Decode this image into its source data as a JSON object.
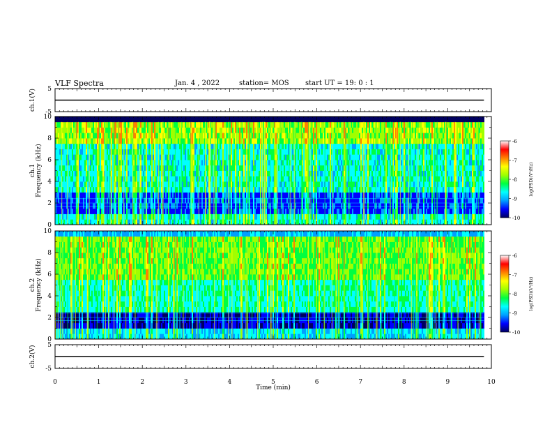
{
  "header": {
    "title": "VLF Spectra",
    "date": "Jan. 4 , 2022",
    "station": "station= MOS",
    "start": "start UT = 19: 0 : 1"
  },
  "chart_data": [
    {
      "type": "line",
      "name": "ch.1 waveform",
      "ylabel": "ch.1(V)",
      "ylim": [
        -5,
        5
      ],
      "yticks": [
        "5",
        "-5"
      ],
      "xlim": [
        0,
        10
      ],
      "description_values": {
        "level": 0.0
      }
    },
    {
      "type": "heatmap",
      "name": "ch.1 spectrogram",
      "ylabel": "ch.1\nFrequency (kHz)",
      "ylabel_lines": [
        "ch.1",
        "Frequency (kHz)"
      ],
      "ylim": [
        0,
        10
      ],
      "yticks": [
        "0",
        "2",
        "4",
        "6",
        "8",
        "10"
      ],
      "xlim": [
        0,
        10
      ],
      "data_end_min": 9.83,
      "colorbar": {
        "label": "log(PSD)(V²/Hz)",
        "range": [
          -10,
          -6
        ],
        "ticks": [
          "-6",
          "-7",
          "-8",
          "-9",
          "-10"
        ]
      }
    },
    {
      "type": "heatmap",
      "name": "ch.2 spectrogram",
      "ylabel": "ch.2\nFrequency (kHz)",
      "ylabel_lines": [
        "ch.2",
        "Frequency (kHz)"
      ],
      "ylim": [
        0,
        10
      ],
      "yticks": [
        "0",
        "2",
        "4",
        "6",
        "8",
        "10"
      ],
      "xlim": [
        0,
        10
      ],
      "data_end_min": 9.83,
      "colorbar": {
        "label": "log(PSD)(V²/Hz)",
        "range": [
          -10,
          -6
        ],
        "ticks": [
          "-6",
          "-7",
          "-8",
          "-9",
          "-10"
        ]
      }
    },
    {
      "type": "line",
      "name": "ch.2 waveform",
      "ylabel": "ch.2(V)",
      "ylim": [
        -5,
        5
      ],
      "yticks": [
        "5",
        "-5"
      ],
      "xlim": [
        0,
        10
      ],
      "xlabel": "Time (min)",
      "xticks": [
        "0",
        "1",
        "2",
        "3",
        "4",
        "5",
        "6",
        "7",
        "8",
        "9",
        "10"
      ],
      "description_values": {
        "level": 0.0
      }
    }
  ],
  "colors": {
    "colormap": [
      "#000060",
      "#0000ff",
      "#00a0ff",
      "#00ffff",
      "#00ff40",
      "#a0ff00",
      "#ffff00",
      "#ff8000",
      "#ff0000",
      "#ffffff"
    ],
    "axis": "#000000"
  }
}
